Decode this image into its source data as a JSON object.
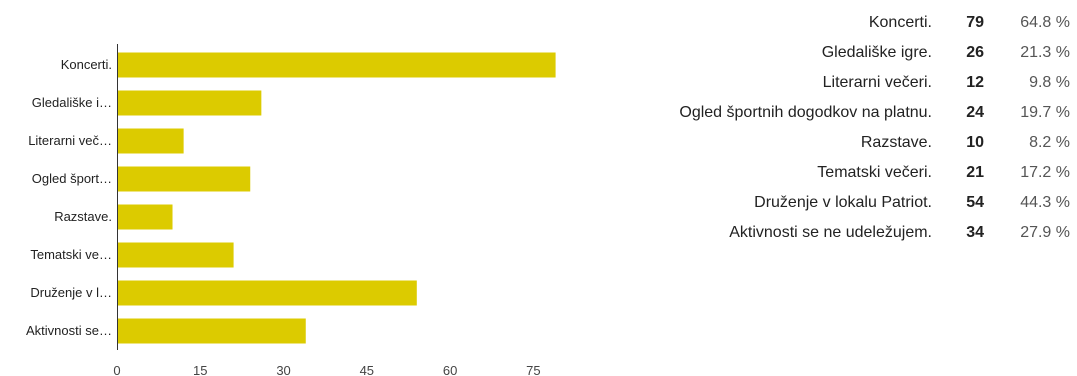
{
  "chart_data": {
    "type": "bar",
    "orientation": "horizontal",
    "categories": [
      "Koncerti.",
      "Gledališke i…",
      "Literarni več…",
      "Ogled šport…",
      "Razstave.",
      "Tematski ve…",
      "Druženje v l…",
      "Aktivnosti se…"
    ],
    "values": [
      79,
      26,
      12,
      24,
      10,
      21,
      54,
      34
    ],
    "xlim": [
      0,
      87
    ],
    "xticks": [
      0,
      15,
      30,
      45,
      60,
      75
    ],
    "grid": false,
    "bar_color": "#dccb00"
  },
  "summary": [
    {
      "label": "Koncerti.",
      "count": "79",
      "pct": "64.8 %"
    },
    {
      "label": "Gledališke igre.",
      "count": "26",
      "pct": "21.3 %"
    },
    {
      "label": "Literarni večeri.",
      "count": "12",
      "pct": "9.8 %"
    },
    {
      "label": "Ogled športnih dogodkov na platnu.",
      "count": "24",
      "pct": "19.7 %"
    },
    {
      "label": "Razstave.",
      "count": "10",
      "pct": "8.2 %"
    },
    {
      "label": "Tematski večeri.",
      "count": "21",
      "pct": "17.2 %"
    },
    {
      "label": "Druženje v lokalu Patriot.",
      "count": "54",
      "pct": "44.3 %"
    },
    {
      "label": "Aktivnosti se ne udeležujem.",
      "count": "34",
      "pct": "27.9 %"
    }
  ]
}
